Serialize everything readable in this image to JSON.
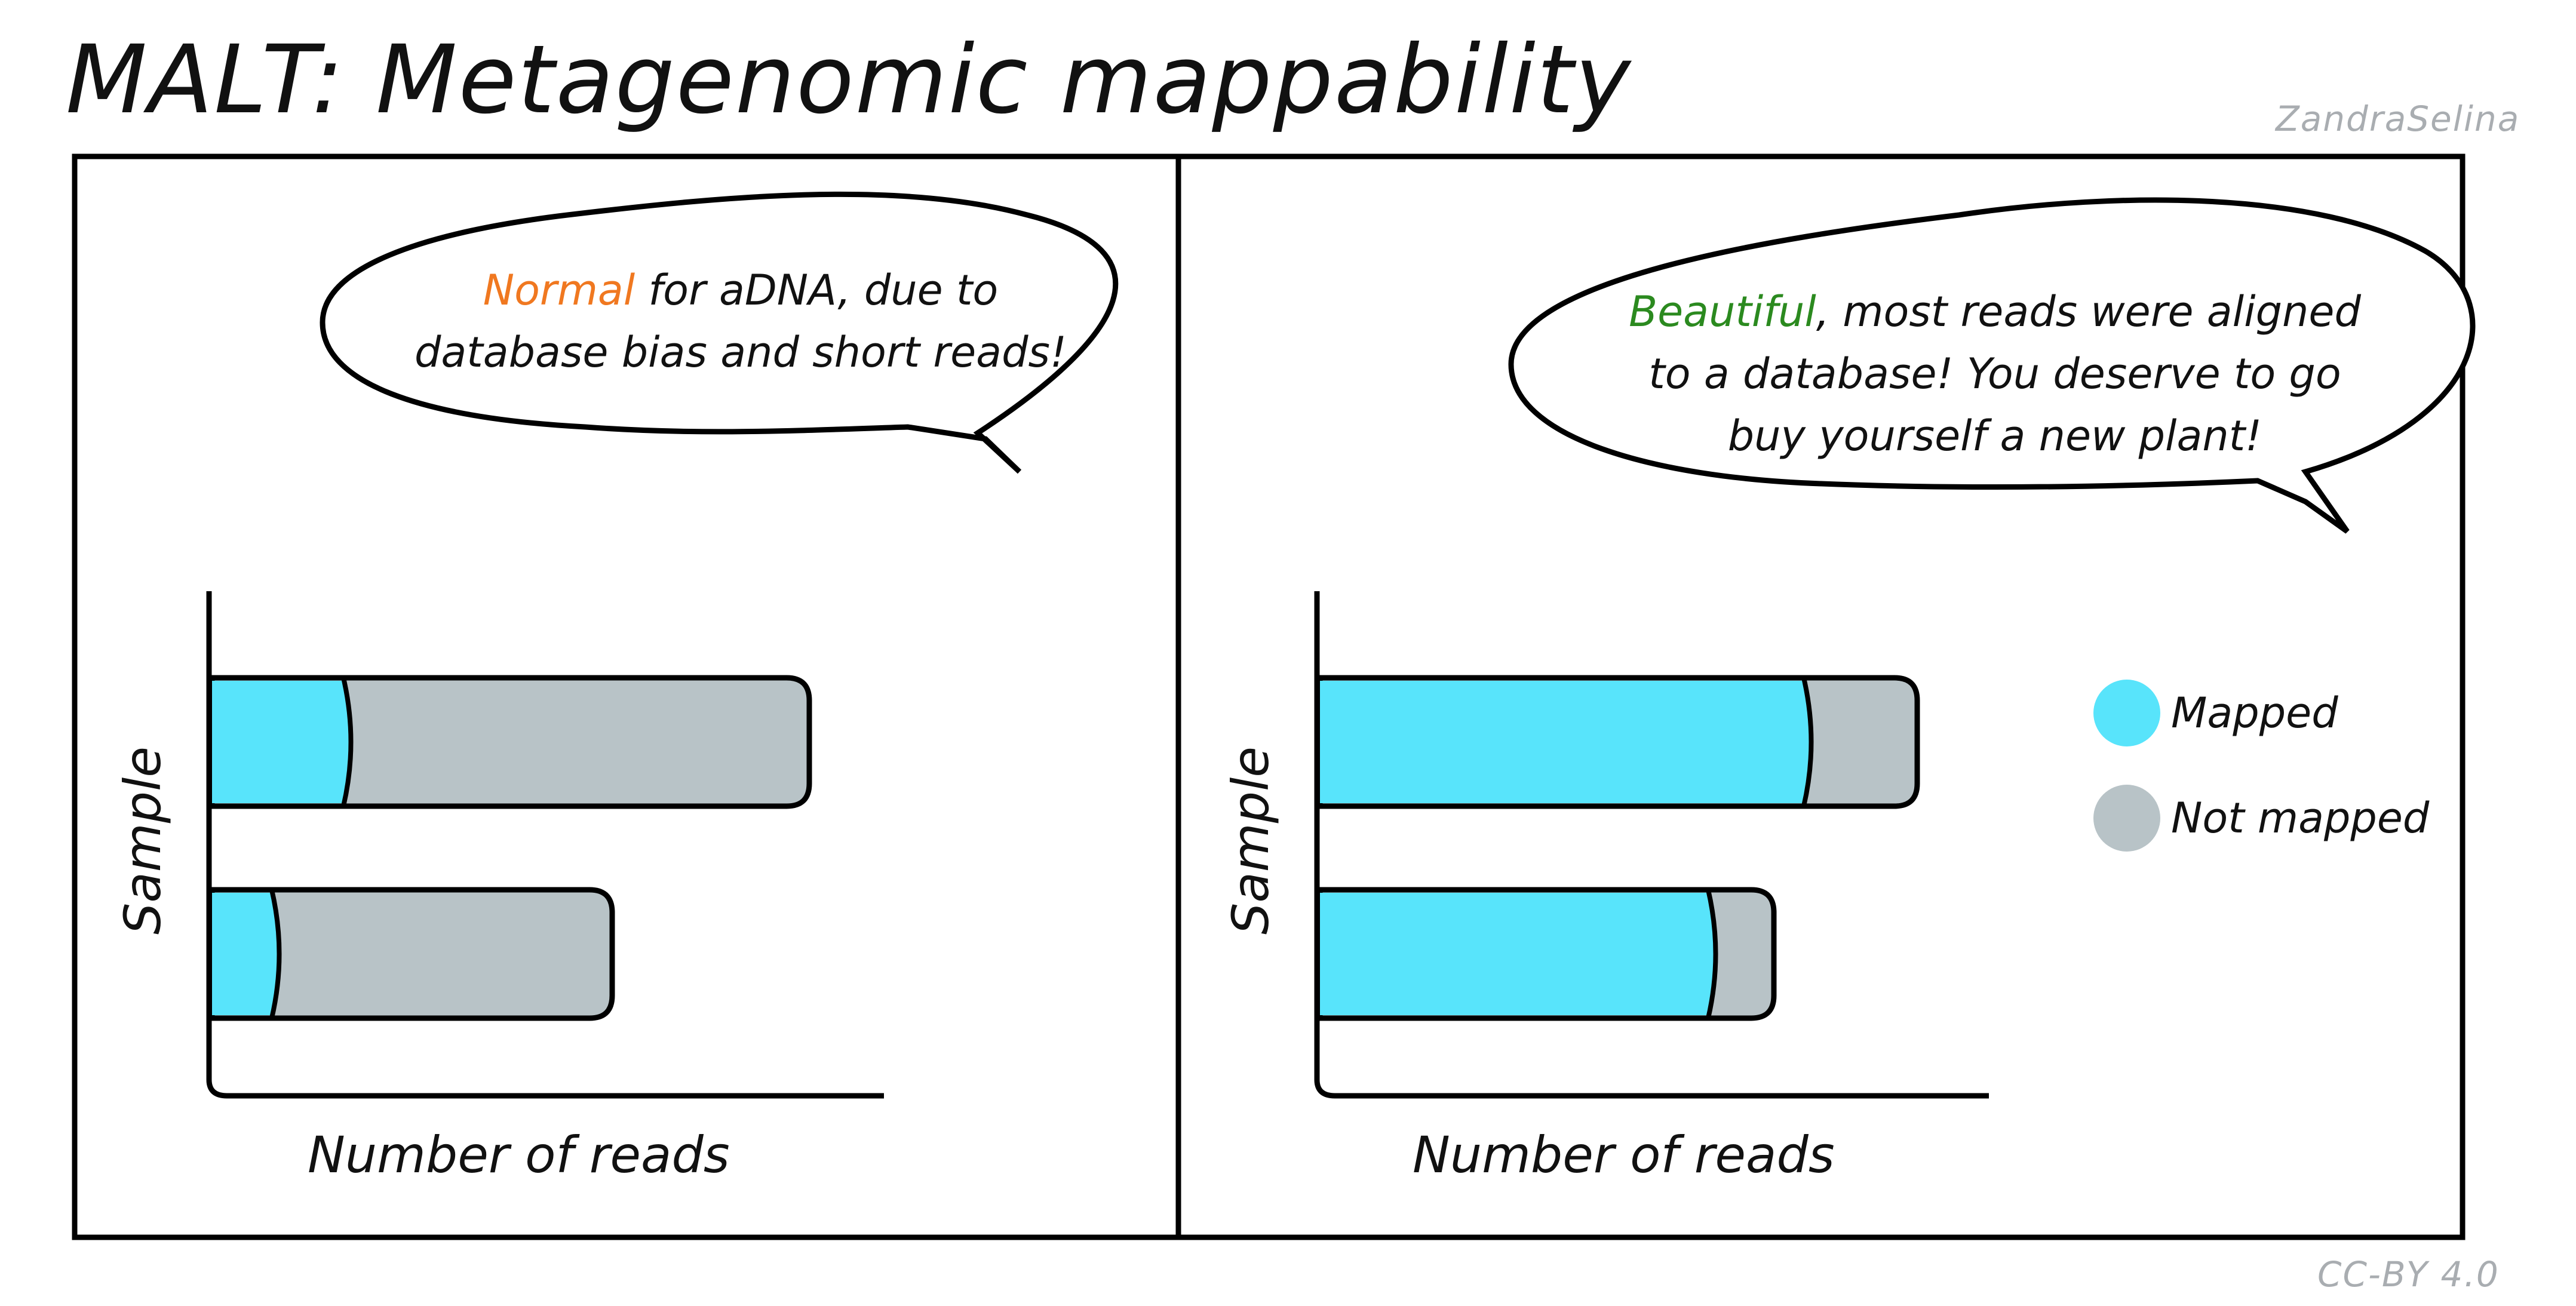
{
  "title": "MALT: Metagenomic mappability",
  "author": "ZandraSelina",
  "license": "CC-BY 4.0",
  "colors": {
    "mapped": "#58e4fb",
    "not_mapped": "#b8c3c7",
    "highlight_left": "#f07820",
    "highlight_right": "#2b8a1f"
  },
  "panels": [
    {
      "bubble": {
        "highlight": "Normal",
        "line1_rest": " for aDNA, due to",
        "line2": "database bias and short reads!"
      },
      "xlabel": "Number of reads",
      "ylabel": "Sample"
    },
    {
      "bubble": {
        "highlight": "Beautiful",
        "line1_rest": ", most reads were aligned",
        "line2": "to a database! You deserve to go",
        "line3": "buy yourself a new plant!"
      },
      "xlabel": "Number of reads",
      "ylabel": "Sample"
    }
  ],
  "legend": [
    {
      "label": "Mapped",
      "color": "#58e4fb"
    },
    {
      "label": "Not mapped",
      "color": "#b8c3c7"
    }
  ],
  "chart_data": [
    {
      "type": "bar",
      "orientation": "horizontal",
      "stacked": true,
      "xlabel": "Number of reads",
      "ylabel": "Sample",
      "categories": [
        "",
        ""
      ],
      "series": [
        {
          "name": "Mapped",
          "values": [
            0.22,
            0.1
          ]
        },
        {
          "name": "Not mapped",
          "values": [
            0.78,
            0.57
          ]
        }
      ],
      "xlim": [
        0,
        1.13
      ]
    },
    {
      "type": "bar",
      "orientation": "horizontal",
      "stacked": true,
      "xlabel": "Number of reads",
      "ylabel": "Sample",
      "categories": [
        "",
        ""
      ],
      "series": [
        {
          "name": "Mapped",
          "values": [
            0.81,
            0.65
          ]
        },
        {
          "name": "Not mapped",
          "values": [
            0.19,
            0.11
          ]
        }
      ],
      "xlim": [
        0,
        1.13
      ]
    }
  ]
}
